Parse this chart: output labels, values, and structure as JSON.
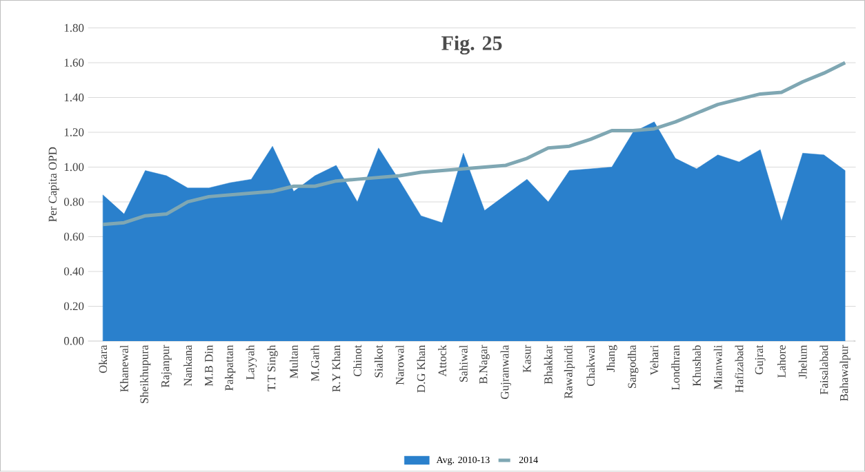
{
  "chart_data": {
    "type": "area",
    "title": "Fig. 25",
    "ylabel": "Per Capita OPD",
    "categories": [
      "Okara",
      "Khanewal",
      "Sheikhupura",
      "Rajanpur",
      "Nankana",
      "M.B Din",
      "Pakpattan",
      "Layyah",
      "T.T Singh",
      "Multan",
      "M.Garh",
      "R.Y Khan",
      "Chinot",
      "Sialkot",
      "Narowal",
      "D.G Khan",
      "Attock",
      "Sahiwal",
      "B.Nagar",
      "Gujranwala",
      "Kasur",
      "Bhakkar",
      "Rawalpindi",
      "Chakwal",
      "Jhang",
      "Sargodha",
      "Vehari",
      "Londhran",
      "Khushab",
      "Mianwali",
      "Hafizabad",
      "Gujrat",
      "Lahore",
      "Jhelum",
      "Faisalabad",
      "Bahawalpur"
    ],
    "series": [
      {
        "name": "Avg. 2010-13",
        "color": "#2a80cc",
        "values": [
          0.84,
          0.73,
          0.98,
          0.95,
          0.88,
          0.88,
          0.91,
          0.93,
          1.12,
          0.86,
          0.95,
          1.01,
          0.8,
          1.11,
          0.92,
          0.72,
          0.68,
          1.08,
          0.75,
          0.84,
          0.93,
          0.8,
          0.98,
          0.99,
          1.0,
          1.2,
          1.26,
          1.05,
          0.99,
          1.07,
          1.03,
          1.1,
          0.69,
          1.08,
          1.07,
          0.98
        ]
      },
      {
        "name": "2014",
        "type": "line",
        "color": "#7fa7b3",
        "values": [
          0.67,
          0.68,
          0.72,
          0.73,
          0.8,
          0.83,
          0.84,
          0.85,
          0.86,
          0.89,
          0.89,
          0.92,
          0.93,
          0.94,
          0.95,
          0.97,
          0.98,
          0.99,
          1.0,
          1.01,
          1.05,
          1.11,
          1.12,
          1.16,
          1.21,
          1.21,
          1.22,
          1.26,
          1.31,
          1.36,
          1.39,
          1.42,
          1.43,
          1.49,
          1.54,
          1.6
        ]
      }
    ],
    "ylim": [
      0,
      1.8
    ],
    "yticks": [
      {
        "value": 0,
        "label": "0.00"
      },
      {
        "value": 0.2,
        "label": "0.20"
      },
      {
        "value": 0.4,
        "label": "0.40"
      },
      {
        "value": 0.6,
        "label": "0.60"
      },
      {
        "value": 0.8,
        "label": "0.80"
      },
      {
        "value": 1.0,
        "label": "1.00"
      },
      {
        "value": 1.2,
        "label": "1.20"
      },
      {
        "value": 1.4,
        "label": "1.40"
      },
      {
        "value": 1.6,
        "label": "1.60"
      },
      {
        "value": 1.8,
        "label": "1.80"
      }
    ],
    "grid": "y",
    "legend": "bottom",
    "marker": "none",
    "line_style": "solid"
  }
}
